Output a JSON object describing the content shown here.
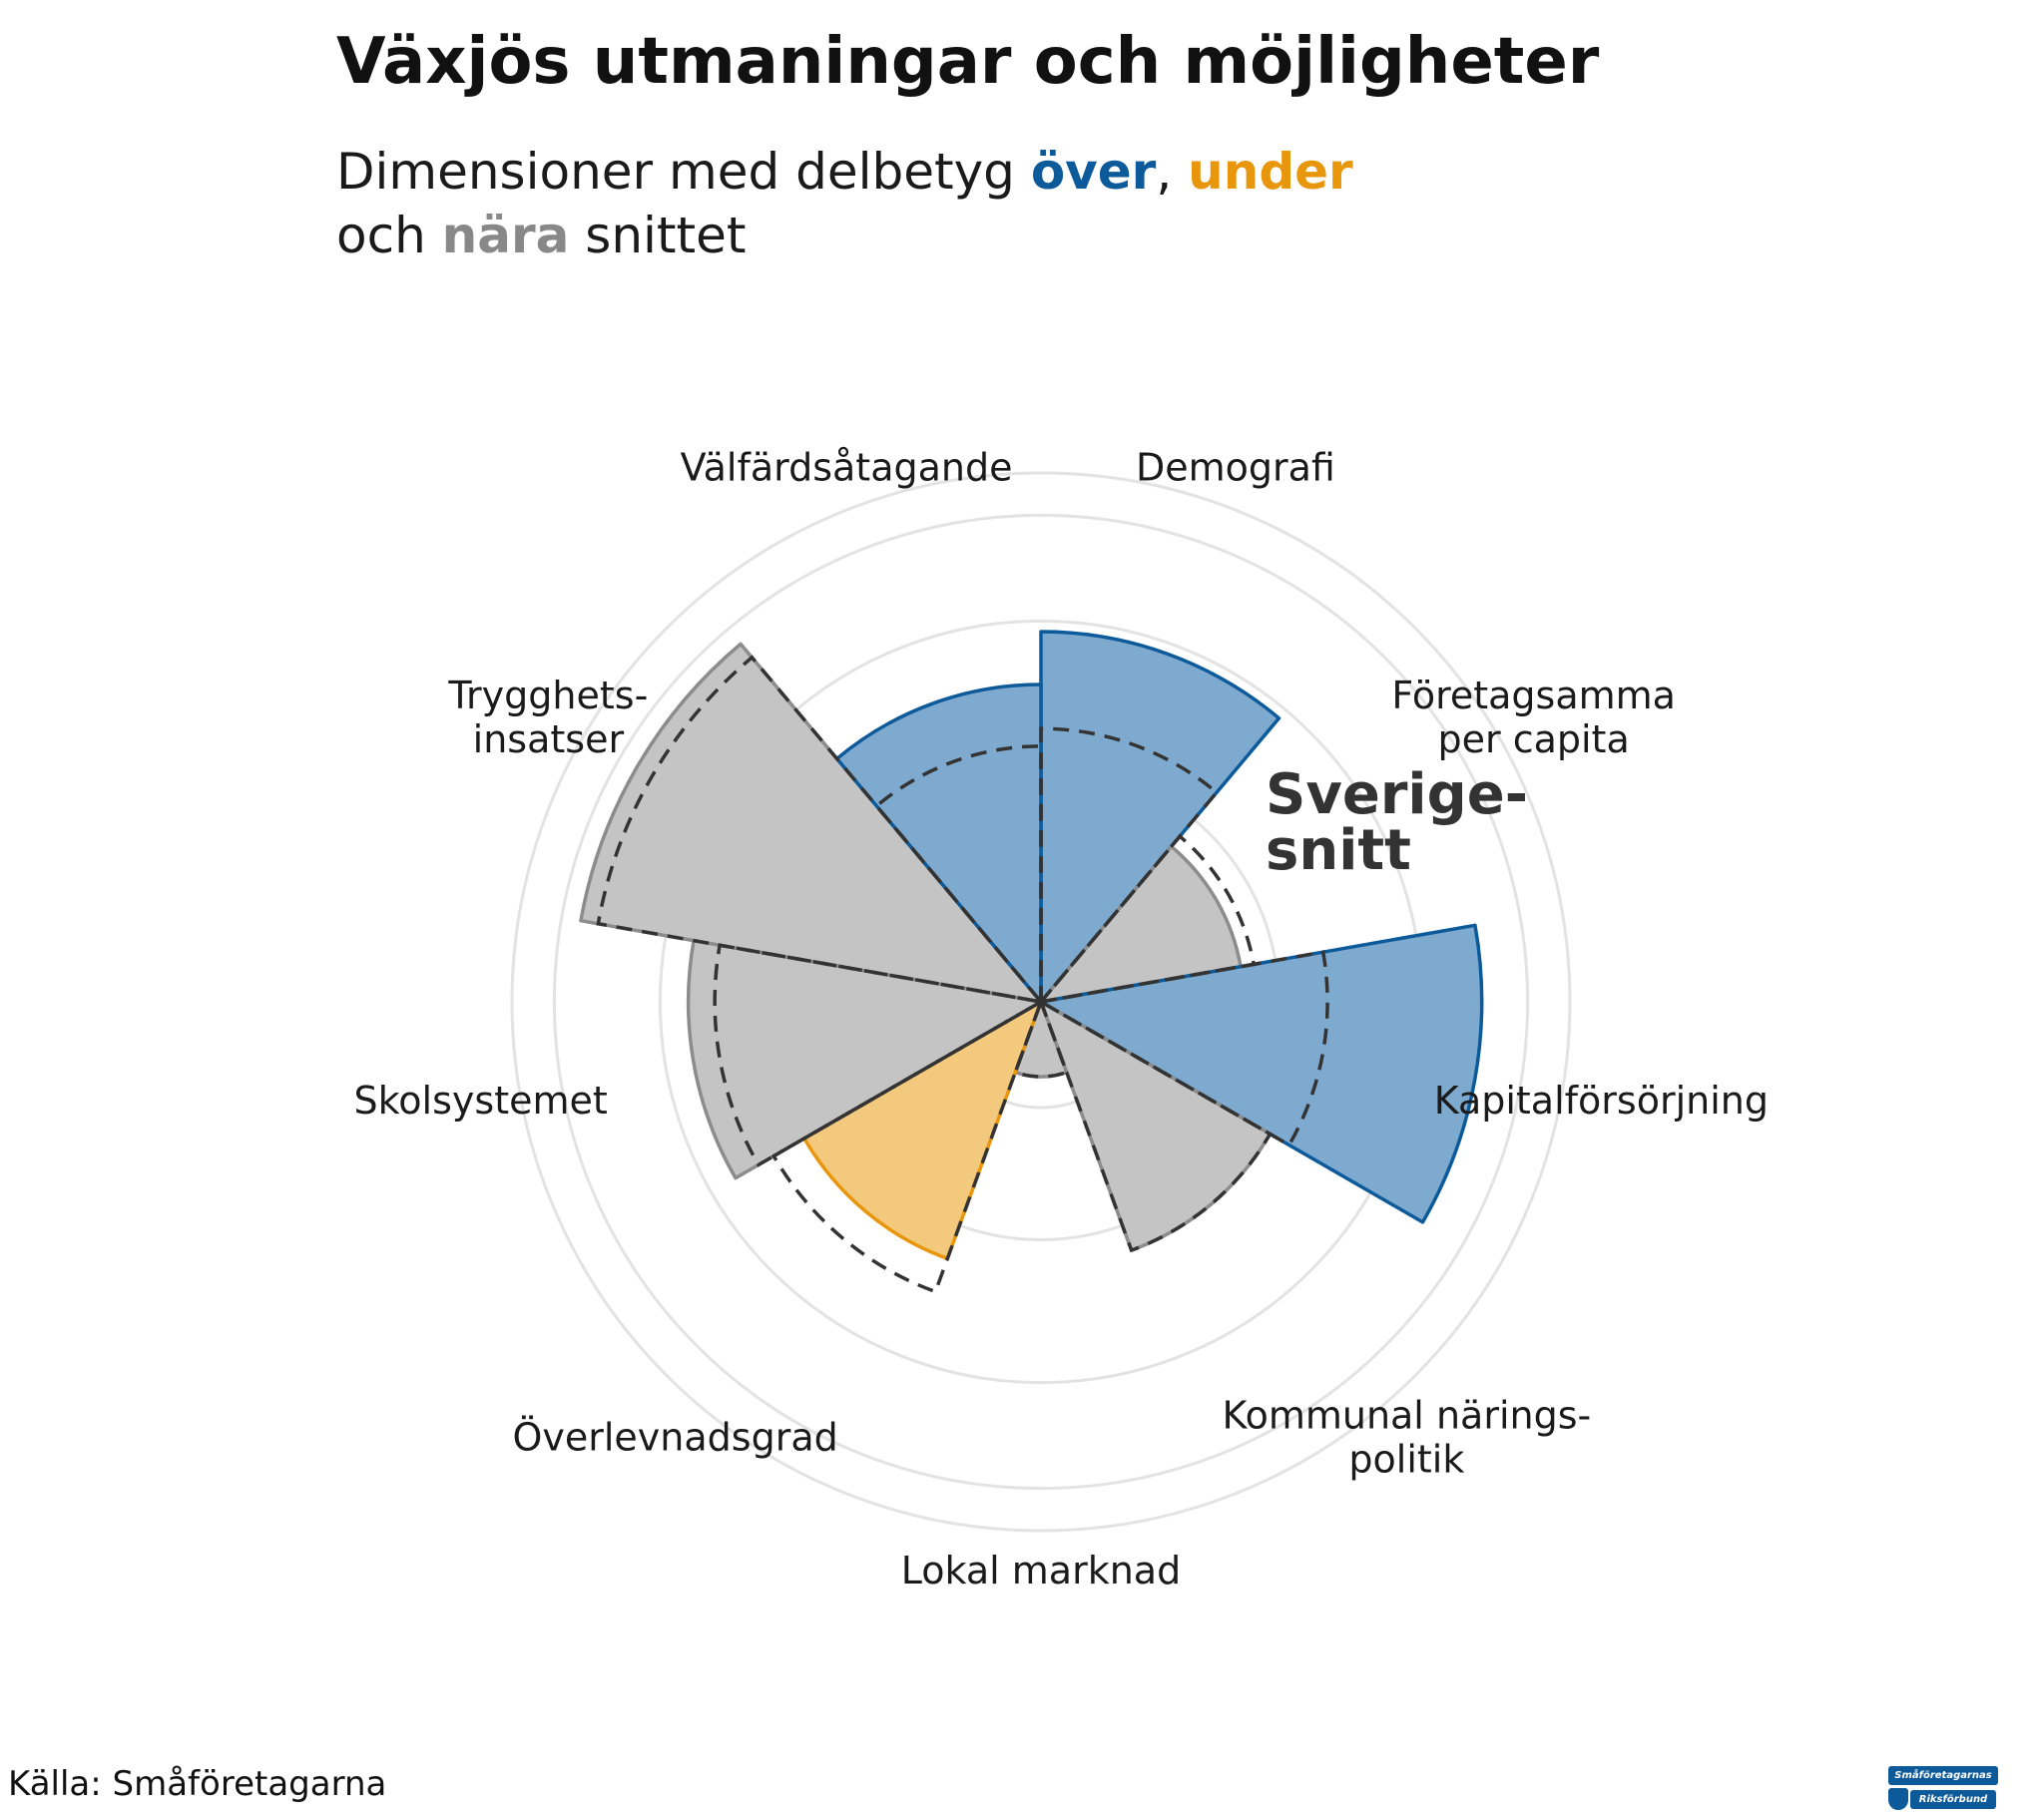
{
  "title": "Växjös utmaningar och möjligheter",
  "subtitle": {
    "prefix": "Dimensioner med delbetyg ",
    "over": "över",
    "comma": ", ",
    "under": "under",
    "line2_prefix": "och ",
    "near": "nära",
    "suffix": " snittet"
  },
  "colors": {
    "over": "#0d5a9a",
    "under": "#e8960b",
    "near": "#888888",
    "over_fill": "#7faacf",
    "under_fill": "#f3c97e",
    "near_fill": "#c4c4c4"
  },
  "chart_data": {
    "type": "polar_bar",
    "reference_label": "Sverige-\nsnitt",
    "rlim": [
      0,
      6
    ],
    "grid": true,
    "categories": [
      {
        "label": "Demografi",
        "value": 4.2,
        "average": 3.1,
        "status": "over"
      },
      {
        "label": "Företagsamma\nper capita",
        "value": 2.3,
        "average": 2.45,
        "status": "near"
      },
      {
        "label": "Kapitalförsörjning",
        "value": 5.0,
        "average": 3.25,
        "status": "over"
      },
      {
        "label": "Kommunal närings-\npolitik",
        "value": 3.0,
        "average": 3.0,
        "status": "near"
      },
      {
        "label": "Lokal marknad",
        "value": 0.85,
        "average": 0.85,
        "status": "near"
      },
      {
        "label": "Överlevnadsgrad",
        "value": 3.1,
        "average": 3.5,
        "status": "under"
      },
      {
        "label": "Skolsystemet",
        "value": 4.0,
        "average": 3.7,
        "status": "near"
      },
      {
        "label": "Trygghets-\ninsatser",
        "value": 5.3,
        "average": 5.1,
        "status": "near"
      },
      {
        "label": "Välfärdsåtagande",
        "value": 3.6,
        "average": 2.9,
        "status": "over"
      }
    ]
  },
  "source": "Källa: Småföretagarna",
  "logo": {
    "line1": "Småföretagarnas",
    "line2": "Riksförbund"
  }
}
